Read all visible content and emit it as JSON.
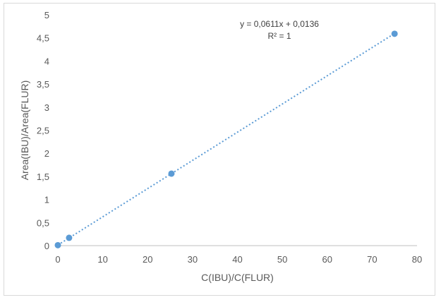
{
  "chart_data": {
    "type": "scatter",
    "title": "",
    "xlabel": "C(IBU)/C(FLUR)",
    "ylabel": "Area(IBU)/Area(FLUR)",
    "xlim": [
      0,
      80
    ],
    "ylim": [
      0,
      5
    ],
    "x_ticks": [
      "0",
      "10",
      "20",
      "30",
      "40",
      "50",
      "60",
      "70",
      "80"
    ],
    "y_ticks": [
      "0",
      "0,5",
      "1",
      "1,5",
      "2",
      "2,5",
      "3",
      "3,5",
      "4",
      "4,5",
      "5"
    ],
    "series": [
      {
        "x": [
          0,
          2.5,
          25.3,
          75
        ],
        "y": [
          0.01,
          0.17,
          1.56,
          4.59
        ]
      }
    ],
    "trendline": {
      "type": "linear",
      "slope": 0.0611,
      "intercept": 0.0136,
      "style": "dotted",
      "equation_label": "y = 0,0611x + 0,0136",
      "r2_label": "R² = 1"
    },
    "grid": false,
    "legend": "none",
    "colors": {
      "marker": "#5b9bd5",
      "trendline": "#5b9bd5",
      "axis": "#bfbfbf"
    }
  }
}
